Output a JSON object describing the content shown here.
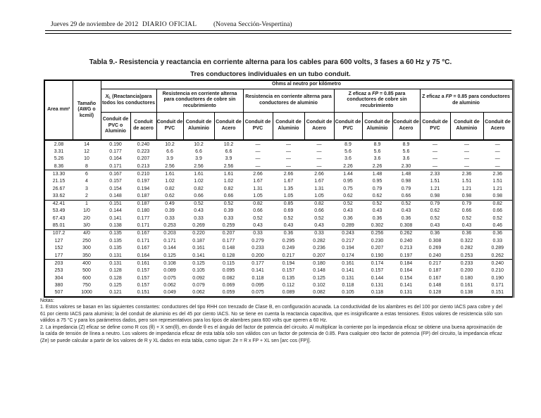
{
  "page_header": {
    "date": "Jueves 29 de noviembre de 2012",
    "publication": "DIARIO OFICIAL",
    "section": "(Novena Sección-Vespertina)"
  },
  "title": "Tabla 9.- Resistencia y reactancia en corriente alterna para los cables para 600 volts, 3 fases a 60 Hz y 75 °C.",
  "subtitle": "Tres conductores individuales en un tubo conduit.",
  "table": {
    "unit_header": "Ohms al neutro por kilómetro",
    "stub_headers": {
      "area": "Area mm²",
      "size": "Tamaño (AWG o kcmil)"
    },
    "col_groups": {
      "xl": {
        "label_pre": "X",
        "label_sub": "L",
        "label_post": " (Reactancia)para todos los conductores"
      },
      "r_cobre": {
        "label": "Resistencia en corriente alterna para conductores de cobre sin recubrimiento"
      },
      "r_aluminio": {
        "label": "Resistencia en corriente alterna para conductores de aluminio"
      },
      "z_cobre": {
        "label_pre": "Z eficaz a ",
        "label_it": "FP",
        "label_post": " = 0.85 para conductores de cobre sin recubrimiento"
      },
      "z_aluminio": {
        "label_pre": "Z eficaz a ",
        "label_it": "FP",
        "label_post": " = 0.85 para conductores de aluminio"
      }
    },
    "sub_headers": {
      "xl_pvc_al": "Conduit de PVC o Aluminio",
      "xl_acero": "Conduit de acero",
      "pvc": "Conduit de PVC",
      "aluminio": "Conduit de Aluminio",
      "acero": "Conduit de Acero"
    },
    "rows": [
      {
        "cells": [
          "2.08",
          "14",
          "0.190",
          "0.240",
          "10.2",
          "10.2",
          "10.2",
          "—",
          "—",
          "—",
          "8.9",
          "8.9",
          "8.9",
          "—",
          "—",
          "—"
        ],
        "group_end": false
      },
      {
        "cells": [
          "3.31",
          "12",
          "0.177",
          "0.223",
          "6.6",
          "6.6",
          "6.6",
          "—",
          "—",
          "—",
          "5.6",
          "5.6",
          "5.6",
          "—",
          "—",
          "—"
        ],
        "group_end": false
      },
      {
        "cells": [
          "5.26",
          "10",
          "0.164",
          "0.207",
          "3.9",
          "3.9",
          "3.9",
          "—",
          "—",
          "—",
          "3.6",
          "3.6",
          "3.6",
          "—",
          "—",
          "—"
        ],
        "group_end": false
      },
      {
        "cells": [
          "8.36",
          "8",
          "0.171",
          "0.213",
          "2.56",
          "2.56",
          "2.56",
          "—",
          "—",
          "—",
          "2.26",
          "2.26",
          "2.30",
          "—",
          "—",
          "—"
        ],
        "group_end": true
      },
      {
        "cells": [
          "13.30",
          "6",
          "0.167",
          "0.210",
          "1.61",
          "1.61",
          "1.61",
          "2.66",
          "2.66",
          "2.66",
          "1.44",
          "1.48",
          "1.48",
          "2.33",
          "2.36",
          "2.36"
        ],
        "group_end": false
      },
      {
        "cells": [
          "21.15",
          "4",
          "0.157",
          "0.197",
          "1.02",
          "1.02",
          "1.02",
          "1.67",
          "1.67",
          "1.67",
          "0.95",
          "0.95",
          "0.98",
          "1.51",
          "1.51",
          "1.51"
        ],
        "group_end": false
      },
      {
        "cells": [
          "26.67",
          "3",
          "0.154",
          "0.194",
          "0.82",
          "0.82",
          "0.82",
          "1.31",
          "1.35",
          "1.31",
          "0.75",
          "0.79",
          "0.79",
          "1.21",
          "1.21",
          "1.21"
        ],
        "group_end": false
      },
      {
        "cells": [
          "33.62",
          "2",
          "0.148",
          "0.187",
          "0.62",
          "0.66",
          "0.66",
          "1.05",
          "1.05",
          "1.05",
          "0.62",
          "0.62",
          "0.66",
          "0.98",
          "0.98",
          "0.98"
        ],
        "group_end": true
      },
      {
        "cells": [
          "42.41",
          "1",
          "0.151",
          "0.187",
          "0.49",
          "0.52",
          "0.52",
          "0.82",
          "0.85",
          "0.82",
          "0.52",
          "0.52",
          "0.52",
          "0.79",
          "0.79",
          "0.82"
        ],
        "group_end": false
      },
      {
        "cells": [
          "53.49",
          "1/0",
          "0.144",
          "0.180",
          "0.39",
          "0.43",
          "0.39",
          "0.66",
          "0.69",
          "0.66",
          "0.43",
          "0.43",
          "0.43",
          "0.62",
          "0.66",
          "0.66"
        ],
        "group_end": false
      },
      {
        "cells": [
          "67.43",
          "2/0",
          "0.141",
          "0.177",
          "0.33",
          "0.33",
          "0.33",
          "0.52",
          "0.52",
          "0.52",
          "0.36",
          "0.36",
          "0.36",
          "0.52",
          "0.52",
          "0.52"
        ],
        "group_end": false
      },
      {
        "cells": [
          "85.01",
          "3/0",
          "0.138",
          "0.171",
          "0.253",
          "0.269",
          "0.259",
          "0.43",
          "0.43",
          "0.43",
          "0.289",
          "0.302",
          "0.308",
          "0.43",
          "0.43",
          "0.46"
        ],
        "group_end": true
      },
      {
        "cells": [
          "107.2",
          "4/0",
          "0.135",
          "0.167",
          "0.203",
          "0.220",
          "0.207",
          "0.33",
          "0.36",
          "0.33",
          "0.243",
          "0.256",
          "0.262",
          "0.36",
          "0.36",
          "0.36"
        ],
        "group_end": false
      },
      {
        "cells": [
          "127",
          "250",
          "0.135",
          "0.171",
          "0.171",
          "0.187",
          "0.177",
          "0.279",
          "0.295",
          "0.282",
          "0.217",
          "0.230",
          "0.240",
          "0.308",
          "0.322",
          "0.33"
        ],
        "group_end": false
      },
      {
        "cells": [
          "152",
          "300",
          "0.135",
          "0.167",
          "0.144",
          "0.161",
          "0.148",
          "0.233",
          "0.249",
          "0.236",
          "0.194",
          "0.207",
          "0.213",
          "0.269",
          "0.282",
          "0.289"
        ],
        "group_end": false
      },
      {
        "cells": [
          "177",
          "350",
          "0.131",
          "0.164",
          "0.125",
          "0.141",
          "0.128",
          "0.200",
          "0.217",
          "0.207",
          "0.174",
          "0.190",
          "0.197",
          "0.240",
          "0.253",
          "0.262"
        ],
        "group_end": true
      },
      {
        "cells": [
          "203",
          "400",
          "0.131",
          "0.161",
          "0.108",
          "0.125",
          "0.115",
          "0.177",
          "0.194",
          "0.180",
          "0.161",
          "0.174",
          "0.184",
          "0.217",
          "0.233",
          "0.240"
        ],
        "group_end": false
      },
      {
        "cells": [
          "253",
          "500",
          "0.128",
          "0.157",
          "0.089",
          "0.105",
          "0.095",
          "0.141",
          "0.157",
          "0.148",
          "0.141",
          "0.157",
          "0.164",
          "0.187",
          "0.200",
          "0.210"
        ],
        "group_end": false
      },
      {
        "cells": [
          "304",
          "600",
          "0.128",
          "0.157",
          "0.075",
          "0.092",
          "0.082",
          "0.118",
          "0.135",
          "0.125",
          "0.131",
          "0.144",
          "0.154",
          "0.167",
          "0.180",
          "0.190"
        ],
        "group_end": false
      },
      {
        "cells": [
          "380",
          "750",
          "0.125",
          "0.157",
          "0.062",
          "0.079",
          "0.069",
          "0.095",
          "0.112",
          "0.102",
          "0.118",
          "0.131",
          "0.141",
          "0.148",
          "0.161",
          "0.171"
        ],
        "group_end": false
      },
      {
        "cells": [
          "507",
          "1000",
          "0.121",
          "0.151",
          "0.049",
          "0.062",
          "0.059",
          "0.075",
          "0.089",
          "0.082",
          "0.105",
          "0.118",
          "0.131",
          "0.128",
          "0.138",
          "0.151"
        ],
        "group_end": false
      }
    ]
  },
  "notes": {
    "label": "Notas:",
    "items": [
      "1. Estos valores se basan en las siguientes constantes: conductores del tipo RHH con trenzado de Clase B, en configuración acunada. La conductividad de los alambres es del 100 por ciento IACS para cobre y del 61 por ciento IACS para aluminio; la del conduit de aluminio es del 45 por ciento IACS. No se tiene en cuenta la reactancia capacitiva, que es insignificante a estas tensiones. Estos valores de resistencia sólo son válidos a 75 °C y para los parámetros dados, pero son representativos para los tipos de alambres para 600 volts que operen a 60 Hz.",
      "2. La impedancia (Z) eficaz se define como R cos (θ) + X sen(θ), en donde θ es el ángulo del factor de potencia del circuito. Al multiplicar la corriente por la impedancia eficaz se obtiene una buena aproximación de la caída de tensión de línea a neutro. Los valores de impedancia eficaz de esta tabla sólo son válidos con un factor de potencia de 0.85. Para cualquier otro factor de potencia (FP) del circuito, la impedancia eficaz (Ze) se puede calcular a partir de los valores de R y XL dados en esta tabla, como sigue: Ze = R x FP + XL sen [arc cos (FP)]."
    ]
  }
}
